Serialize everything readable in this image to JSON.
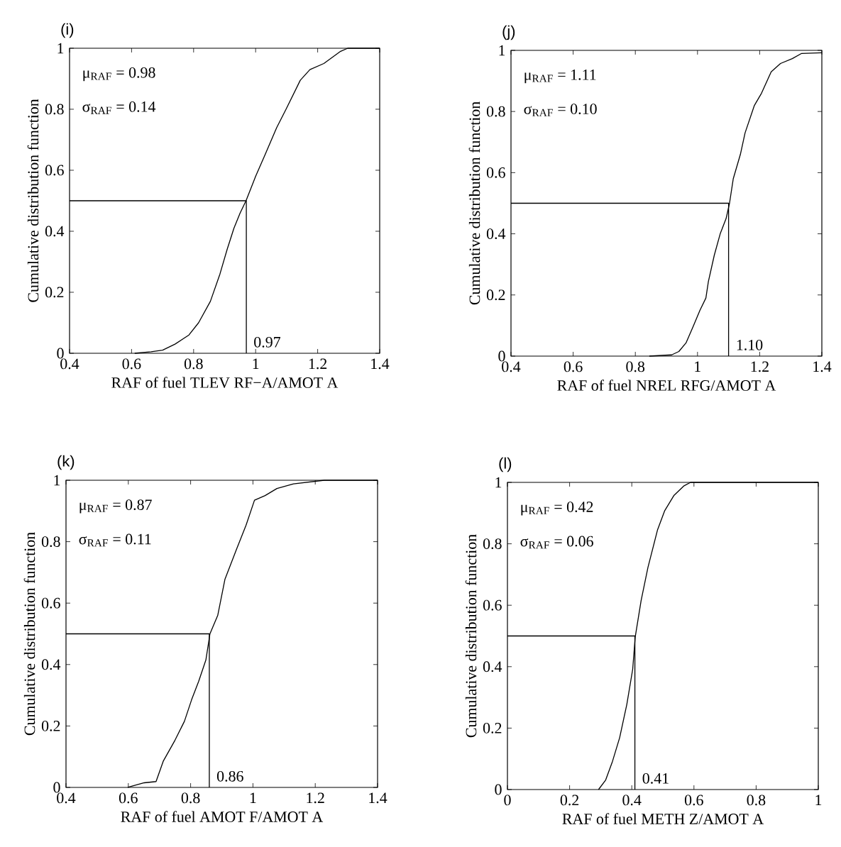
{
  "chart_data": [
    {
      "type": "line",
      "title": "(i)",
      "xlabel": "RAF of fuel TLEV RF−A/AMOT A",
      "ylabel": "Cumulative distribution function",
      "xlim": [
        0.4,
        1.4
      ],
      "ylim": [
        0,
        1
      ],
      "xticks": [
        0.4,
        0.6,
        0.8,
        1,
        1.2,
        1.4
      ],
      "yticks": [
        0,
        0.2,
        0.4,
        0.6,
        0.8,
        1
      ],
      "annotations": [
        "μ$_{RAF}$ = 0.98",
        "σ$_{RAF}$ = 0.14",
        {
          "text": "0.97",
          "x": 0.97,
          "y": 0
        }
      ],
      "series": [
        {
          "color": "#000000",
          "x": [
            0.61,
            0.663,
            0.7,
            0.74,
            0.785,
            0.816,
            0.854,
            0.885,
            0.908,
            0.93,
            0.95,
            0.969,
            1.0,
            1.03,
            1.068,
            1.098,
            1.144,
            1.175,
            1.22,
            1.274,
            1.297,
            1.4
          ],
          "values": [
            0,
            0.005,
            0.01,
            0.03,
            0.06,
            0.1,
            0.17,
            0.26,
            0.34,
            0.41,
            0.46,
            0.5,
            0.58,
            0.65,
            0.74,
            0.8,
            0.895,
            0.93,
            0.95,
            0.99,
            1.0,
            1.0
          ]
        },
        {
          "color": "#000000",
          "x": [
            0.4,
            0.97,
            0.97
          ],
          "values": [
            0.5,
            0.5,
            0
          ]
        }
      ]
    },
    {
      "type": "line",
      "title": "(j)",
      "xlabel": "RAF of fuel NREL RFG/AMOT A",
      "ylabel": "Cumulative distribution function",
      "xlim": [
        0.4,
        1.4
      ],
      "ylim": [
        0,
        1
      ],
      "xticks": [
        0.4,
        0.6,
        0.8,
        1,
        1.2,
        1.4
      ],
      "yticks": [
        0,
        0.2,
        0.4,
        0.6,
        0.8,
        1
      ],
      "annotations": [
        "μ$_{RAF}$ = 1.11",
        "σ$_{RAF}$ = 0.10",
        {
          "text": "1.10",
          "x": 1.1,
          "y": 0
        }
      ],
      "series": [
        {
          "color": "#000000",
          "x": [
            0.845,
            0.917,
            0.94,
            0.963,
            0.986,
            1.008,
            1.027,
            1.035,
            1.054,
            1.073,
            1.092,
            1.103,
            1.115,
            1.138,
            1.153,
            1.183,
            1.206,
            1.237,
            1.267,
            1.305,
            1.335,
            1.4
          ],
          "values": [
            0,
            0.004,
            0.015,
            0.043,
            0.097,
            0.15,
            0.19,
            0.244,
            0.33,
            0.4,
            0.45,
            0.5,
            0.58,
            0.66,
            0.73,
            0.82,
            0.86,
            0.93,
            0.957,
            0.973,
            0.99,
            0.992
          ]
        },
        {
          "color": "#000000",
          "x": [
            0.4,
            1.1,
            1.1
          ],
          "values": [
            0.5,
            0.5,
            0
          ]
        }
      ]
    },
    {
      "type": "line",
      "title": "(k)",
      "xlabel": "RAF of fuel AMOT F/AMOT A",
      "ylabel": "Cumulative distribution function",
      "xlim": [
        0.4,
        1.4
      ],
      "ylim": [
        0,
        1
      ],
      "xticks": [
        0.4,
        0.6,
        0.8,
        1,
        1.2,
        1.4
      ],
      "yticks": [
        0,
        0.2,
        0.4,
        0.6,
        0.8,
        1
      ],
      "annotations": [
        "μ$_{RAF}$ = 0.87",
        "σ$_{RAF}$ = 0.11",
        {
          "text": "0.86",
          "x": 0.86,
          "y": 0
        }
      ],
      "series": [
        {
          "color": "#000000",
          "x": [
            0.598,
            0.651,
            0.689,
            0.712,
            0.75,
            0.78,
            0.803,
            0.826,
            0.849,
            0.862,
            0.887,
            0.91,
            0.948,
            0.978,
            1.005,
            1.039,
            1.077,
            1.13,
            1.229,
            1.4
          ],
          "values": [
            0,
            0.015,
            0.019,
            0.085,
            0.154,
            0.215,
            0.285,
            0.346,
            0.415,
            0.5,
            0.56,
            0.677,
            0.777,
            0.854,
            0.935,
            0.95,
            0.973,
            0.988,
            1.0,
            1.0
          ]
        },
        {
          "color": "#000000",
          "x": [
            0.4,
            0.86,
            0.86
          ],
          "values": [
            0.5,
            0.5,
            0
          ]
        }
      ]
    },
    {
      "type": "line",
      "title": "(l)",
      "xlabel": "RAF of fuel METH Z/AMOT A",
      "ylabel": "Cumulative distribution function",
      "xlim": [
        0,
        1
      ],
      "ylim": [
        0,
        1
      ],
      "xticks": [
        0,
        0.2,
        0.4,
        0.6,
        0.8,
        1
      ],
      "yticks": [
        0,
        0.2,
        0.4,
        0.6,
        0.8,
        1
      ],
      "annotations": [
        "μ$_{RAF}$ = 0.42",
        "σ$_{RAF}$ = 0.06",
        {
          "text": "0.41",
          "x": 0.41,
          "y": 0
        }
      ],
      "series": [
        {
          "color": "#000000",
          "x": [
            0.293,
            0.316,
            0.338,
            0.361,
            0.384,
            0.403,
            0.411,
            0.43,
            0.452,
            0.483,
            0.506,
            0.536,
            0.567,
            0.589,
            1.0
          ],
          "values": [
            0,
            0.031,
            0.092,
            0.169,
            0.277,
            0.392,
            0.496,
            0.615,
            0.723,
            0.846,
            0.908,
            0.958,
            0.988,
            1.0,
            1.0
          ]
        },
        {
          "color": "#000000",
          "x": [
            0,
            0.41,
            0.41
          ],
          "values": [
            0.5,
            0.5,
            0
          ]
        }
      ]
    }
  ]
}
